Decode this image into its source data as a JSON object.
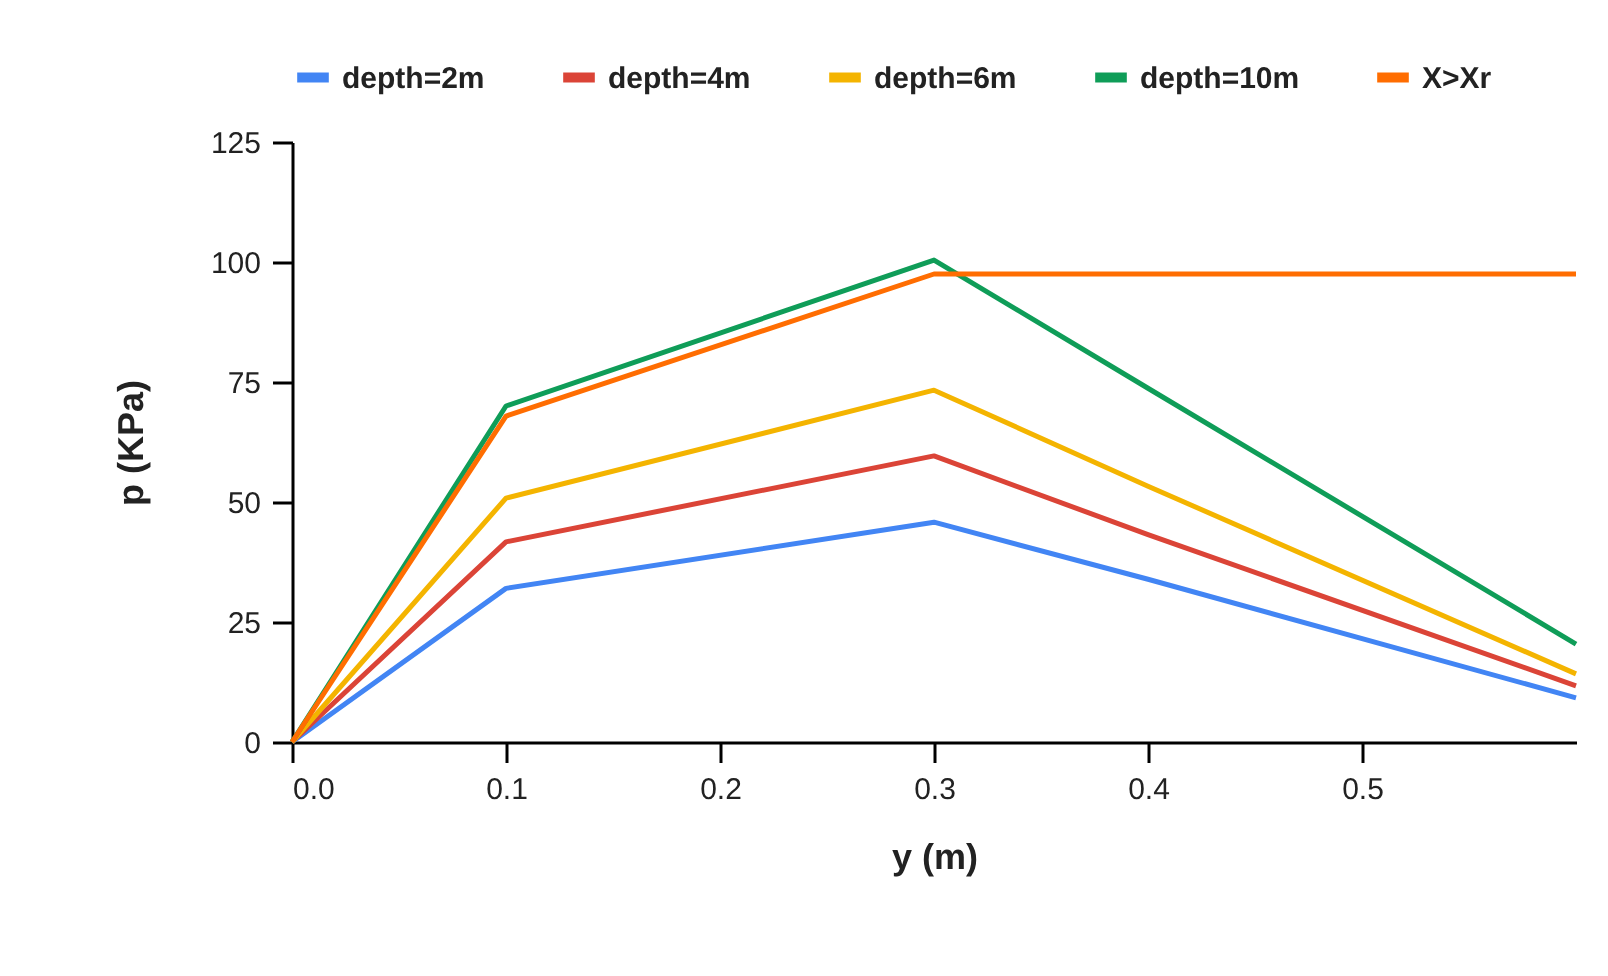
{
  "chart_data": {
    "type": "line",
    "xlabel": "y (m)",
    "ylabel": "p (KPa)",
    "x": [
      0,
      0.1,
      0.3,
      0.4,
      0.6
    ],
    "series": [
      {
        "name": "depth=2m",
        "color": "#4285f4",
        "values": [
          0,
          32,
          45.8,
          33.9,
          9.2
        ]
      },
      {
        "name": "depth=4m",
        "color": "#db4437",
        "values": [
          0,
          41.7,
          59.6,
          43.2,
          11.7
        ]
      },
      {
        "name": "depth=6m",
        "color": "#f4b400",
        "values": [
          0,
          50.8,
          73.3,
          53.3,
          14.2
        ]
      },
      {
        "name": "depth=10m",
        "color": "#0f9d58",
        "values": [
          0,
          70,
          100.4,
          73.7,
          20.4
        ]
      },
      {
        "name": "X>Xr",
        "color": "#ff6d01",
        "values": [
          0,
          67.9,
          97.5,
          97.5,
          97.5
        ]
      }
    ],
    "xlim": [
      0,
      0.6
    ],
    "xticks": [
      {
        "value": 0,
        "label": "0.0"
      },
      0.1,
      0.2,
      0.3,
      0.4,
      0.5
    ],
    "ylim": [
      0,
      125
    ],
    "yticks": [
      0,
      25,
      50,
      75,
      100,
      125
    ],
    "grid": false,
    "legend": "top",
    "marker": "none",
    "line_style": "solid"
  }
}
